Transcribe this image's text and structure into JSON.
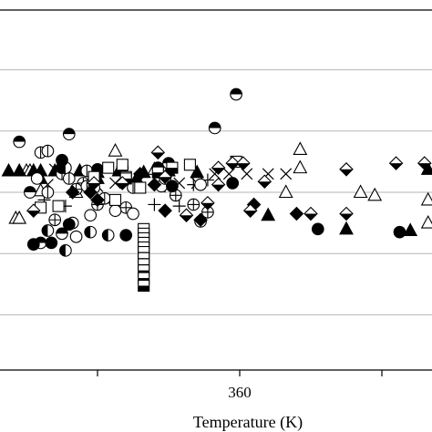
{
  "chart_data": {
    "type": "scatter",
    "xlabel": "Temperature (K)",
    "ylabel": "",
    "title": "",
    "x_tick_labels": [
      {
        "x": 360,
        "label": "360"
      }
    ],
    "x_ticks_minor": [
      320,
      400
    ],
    "xlim": [
      295,
      416
    ],
    "ylim": [
      -1.3,
      1.1
    ],
    "y_gridlines": [
      -0.8,
      -0.4,
      0.0,
      0.4,
      0.8
    ],
    "grid": "horizontal",
    "series": [
      {
        "marker": "triangle-up-open",
        "points": [
          [
            300,
            0.14
          ],
          [
            301,
            0.14
          ],
          [
            325,
            0.27
          ],
          [
            336,
            0.15
          ],
          [
            377,
            0.28
          ],
          [
            377,
            0.16
          ],
          [
            394,
            0.0
          ],
          [
            398,
            -0.02
          ],
          [
            413,
            -0.05
          ],
          [
            413,
            -0.2
          ],
          [
            297,
            -0.17
          ],
          [
            298,
            -0.17
          ],
          [
            314,
            0.0
          ],
          [
            304,
            0.01
          ],
          [
            373,
            0.0
          ]
        ]
      },
      {
        "marker": "triangle-up-filled",
        "points": [
          [
            295,
            0.14
          ],
          [
            298,
            0.14
          ],
          [
            302,
            0.14
          ],
          [
            304,
            0.14
          ],
          [
            308,
            0.14
          ],
          [
            315,
            0.14
          ],
          [
            320,
            0.13
          ],
          [
            326,
            0.14
          ],
          [
            333,
            0.13
          ],
          [
            340,
            0.14
          ],
          [
            348,
            0.13
          ],
          [
            368,
            -0.15
          ],
          [
            390,
            -0.24
          ],
          [
            408,
            -0.25
          ],
          [
            413,
            0.15
          ],
          [
            304,
            0.09
          ],
          [
            309,
            0.14
          ],
          [
            320,
            0.09
          ],
          [
            331,
            0.09
          ]
        ]
      },
      {
        "marker": "x",
        "points": [
          [
            308,
            0.15
          ],
          [
            353,
            0.12
          ],
          [
            357,
            0.12
          ],
          [
            362,
            0.12
          ],
          [
            368,
            0.12
          ],
          [
            373,
            0.12
          ],
          [
            306,
            0.05
          ],
          [
            320,
            0.04
          ],
          [
            325,
            0.06
          ],
          [
            330,
            0.05
          ],
          [
            343,
            0.06
          ],
          [
            348,
            0.06
          ]
        ]
      },
      {
        "marker": "plus",
        "points": [
          [
            305,
            -0.05
          ],
          [
            311,
            -0.09
          ],
          [
            324,
            -0.07
          ],
          [
            336,
            -0.08
          ],
          [
            339,
            0.04
          ],
          [
            347,
            0.05
          ],
          [
            343,
            -0.09
          ],
          [
            351,
            0.08
          ],
          [
            350,
            -0.16
          ]
        ]
      },
      {
        "marker": "circle-plus",
        "points": [
          [
            308,
            -0.18
          ],
          [
            316,
            0.06
          ],
          [
            320,
            -0.08
          ],
          [
            328,
            -0.1
          ],
          [
            342,
            -0.02
          ],
          [
            347,
            -0.08
          ],
          [
            349,
            -0.19
          ],
          [
            351,
            -0.13
          ],
          [
            314,
            0.02
          ]
        ]
      },
      {
        "marker": "circle-open",
        "points": [
          [
            303,
            0.09
          ],
          [
            313,
            -0.2
          ],
          [
            318,
            -0.15
          ],
          [
            325,
            -0.12
          ],
          [
            330,
            -0.14
          ],
          [
            338,
            0.04
          ],
          [
            349,
            0.05
          ],
          [
            314,
            -0.29
          ]
        ]
      },
      {
        "marker": "circle-vertical-half",
        "points": [
          [
            306,
            0.0
          ],
          [
            310,
            0.12
          ],
          [
            317,
            0.04
          ],
          [
            319,
            0.03
          ],
          [
            322,
            -0.04
          ],
          [
            339,
            0.09
          ],
          [
            304,
            0.26
          ],
          [
            306,
            0.27
          ],
          [
            312,
            0.09
          ],
          [
            317,
            0.14
          ],
          [
            330,
            0.03
          ]
        ]
      },
      {
        "marker": "circle-top-half-filled",
        "points": [
          [
            359,
            0.64
          ],
          [
            353,
            0.42
          ],
          [
            298,
            0.33
          ],
          [
            304,
            -0.33
          ],
          [
            310,
            -0.27
          ],
          [
            337,
            0.16
          ],
          [
            340,
            0.19
          ],
          [
            312,
            0.38
          ],
          [
            301,
            0.0
          ]
        ]
      },
      {
        "marker": "circle-left-half-filled",
        "points": [
          [
            306,
            -0.25
          ],
          [
            311,
            -0.38
          ],
          [
            310,
            0.16
          ],
          [
            311,
            0.16
          ],
          [
            318,
            -0.26
          ],
          [
            323,
            -0.28
          ]
        ]
      },
      {
        "marker": "circle-filled",
        "points": [
          [
            307,
            -0.33
          ],
          [
            312,
            -0.21
          ],
          [
            310,
            0.21
          ],
          [
            320,
            0.15
          ],
          [
            327,
            0.16
          ],
          [
            341,
            0.04
          ],
          [
            358,
            0.06
          ],
          [
            382,
            -0.24
          ],
          [
            405,
            -0.26
          ],
          [
            328,
            -0.28
          ],
          [
            302,
            -0.34
          ]
        ]
      },
      {
        "marker": "square-open",
        "points": [
          [
            323,
            0.16
          ],
          [
            327,
            0.18
          ],
          [
            332,
            0.03
          ],
          [
            346,
            0.18
          ],
          [
            359,
            0.2
          ],
          [
            304,
            -0.1
          ],
          [
            309,
            -0.09
          ],
          [
            328,
            0.1
          ],
          [
            319,
            0.1
          ],
          [
            325,
            -0.05
          ]
        ]
      },
      {
        "marker": "square-horizontal-half",
        "points": [
          [
            333,
            -0.24
          ],
          [
            333,
            -0.27
          ],
          [
            333,
            -0.3
          ],
          [
            333,
            -0.33
          ],
          [
            333,
            -0.36
          ],
          [
            333,
            -0.39
          ],
          [
            333,
            -0.43
          ],
          [
            333,
            -0.47
          ],
          [
            333,
            -0.51
          ],
          [
            333,
            -0.56
          ],
          [
            333,
            -0.61
          ],
          [
            337,
            0.13
          ],
          [
            341,
            0.16
          ],
          [
            328,
            0.09
          ]
        ]
      },
      {
        "marker": "diamond-filled",
        "points": [
          [
            313,
            0.0
          ],
          [
            318,
            0.0
          ],
          [
            320,
            -0.05
          ],
          [
            332,
            0.12
          ],
          [
            336,
            0.05
          ],
          [
            339,
            -0.12
          ],
          [
            364,
            -0.08
          ],
          [
            376,
            -0.14
          ],
          [
            349,
            -0.18
          ]
        ]
      },
      {
        "marker": "diamond-bottom-half-filled",
        "points": [
          [
            363,
            -0.12
          ],
          [
            380,
            -0.14
          ],
          [
            390,
            -0.14
          ],
          [
            412,
            0.19
          ],
          [
            404,
            0.19
          ],
          [
            390,
            0.15
          ],
          [
            367,
            0.07
          ],
          [
            354,
            0.16
          ],
          [
            354,
            0.05
          ],
          [
            345,
            -0.15
          ],
          [
            337,
            0.26
          ],
          [
            319,
            0.06
          ],
          [
            351,
            -0.07
          ],
          [
            327,
            0.06
          ],
          [
            302,
            -0.12
          ],
          [
            339,
            0.1
          ],
          [
            358,
            0.19
          ],
          [
            361,
            0.19
          ]
        ]
      }
    ]
  }
}
